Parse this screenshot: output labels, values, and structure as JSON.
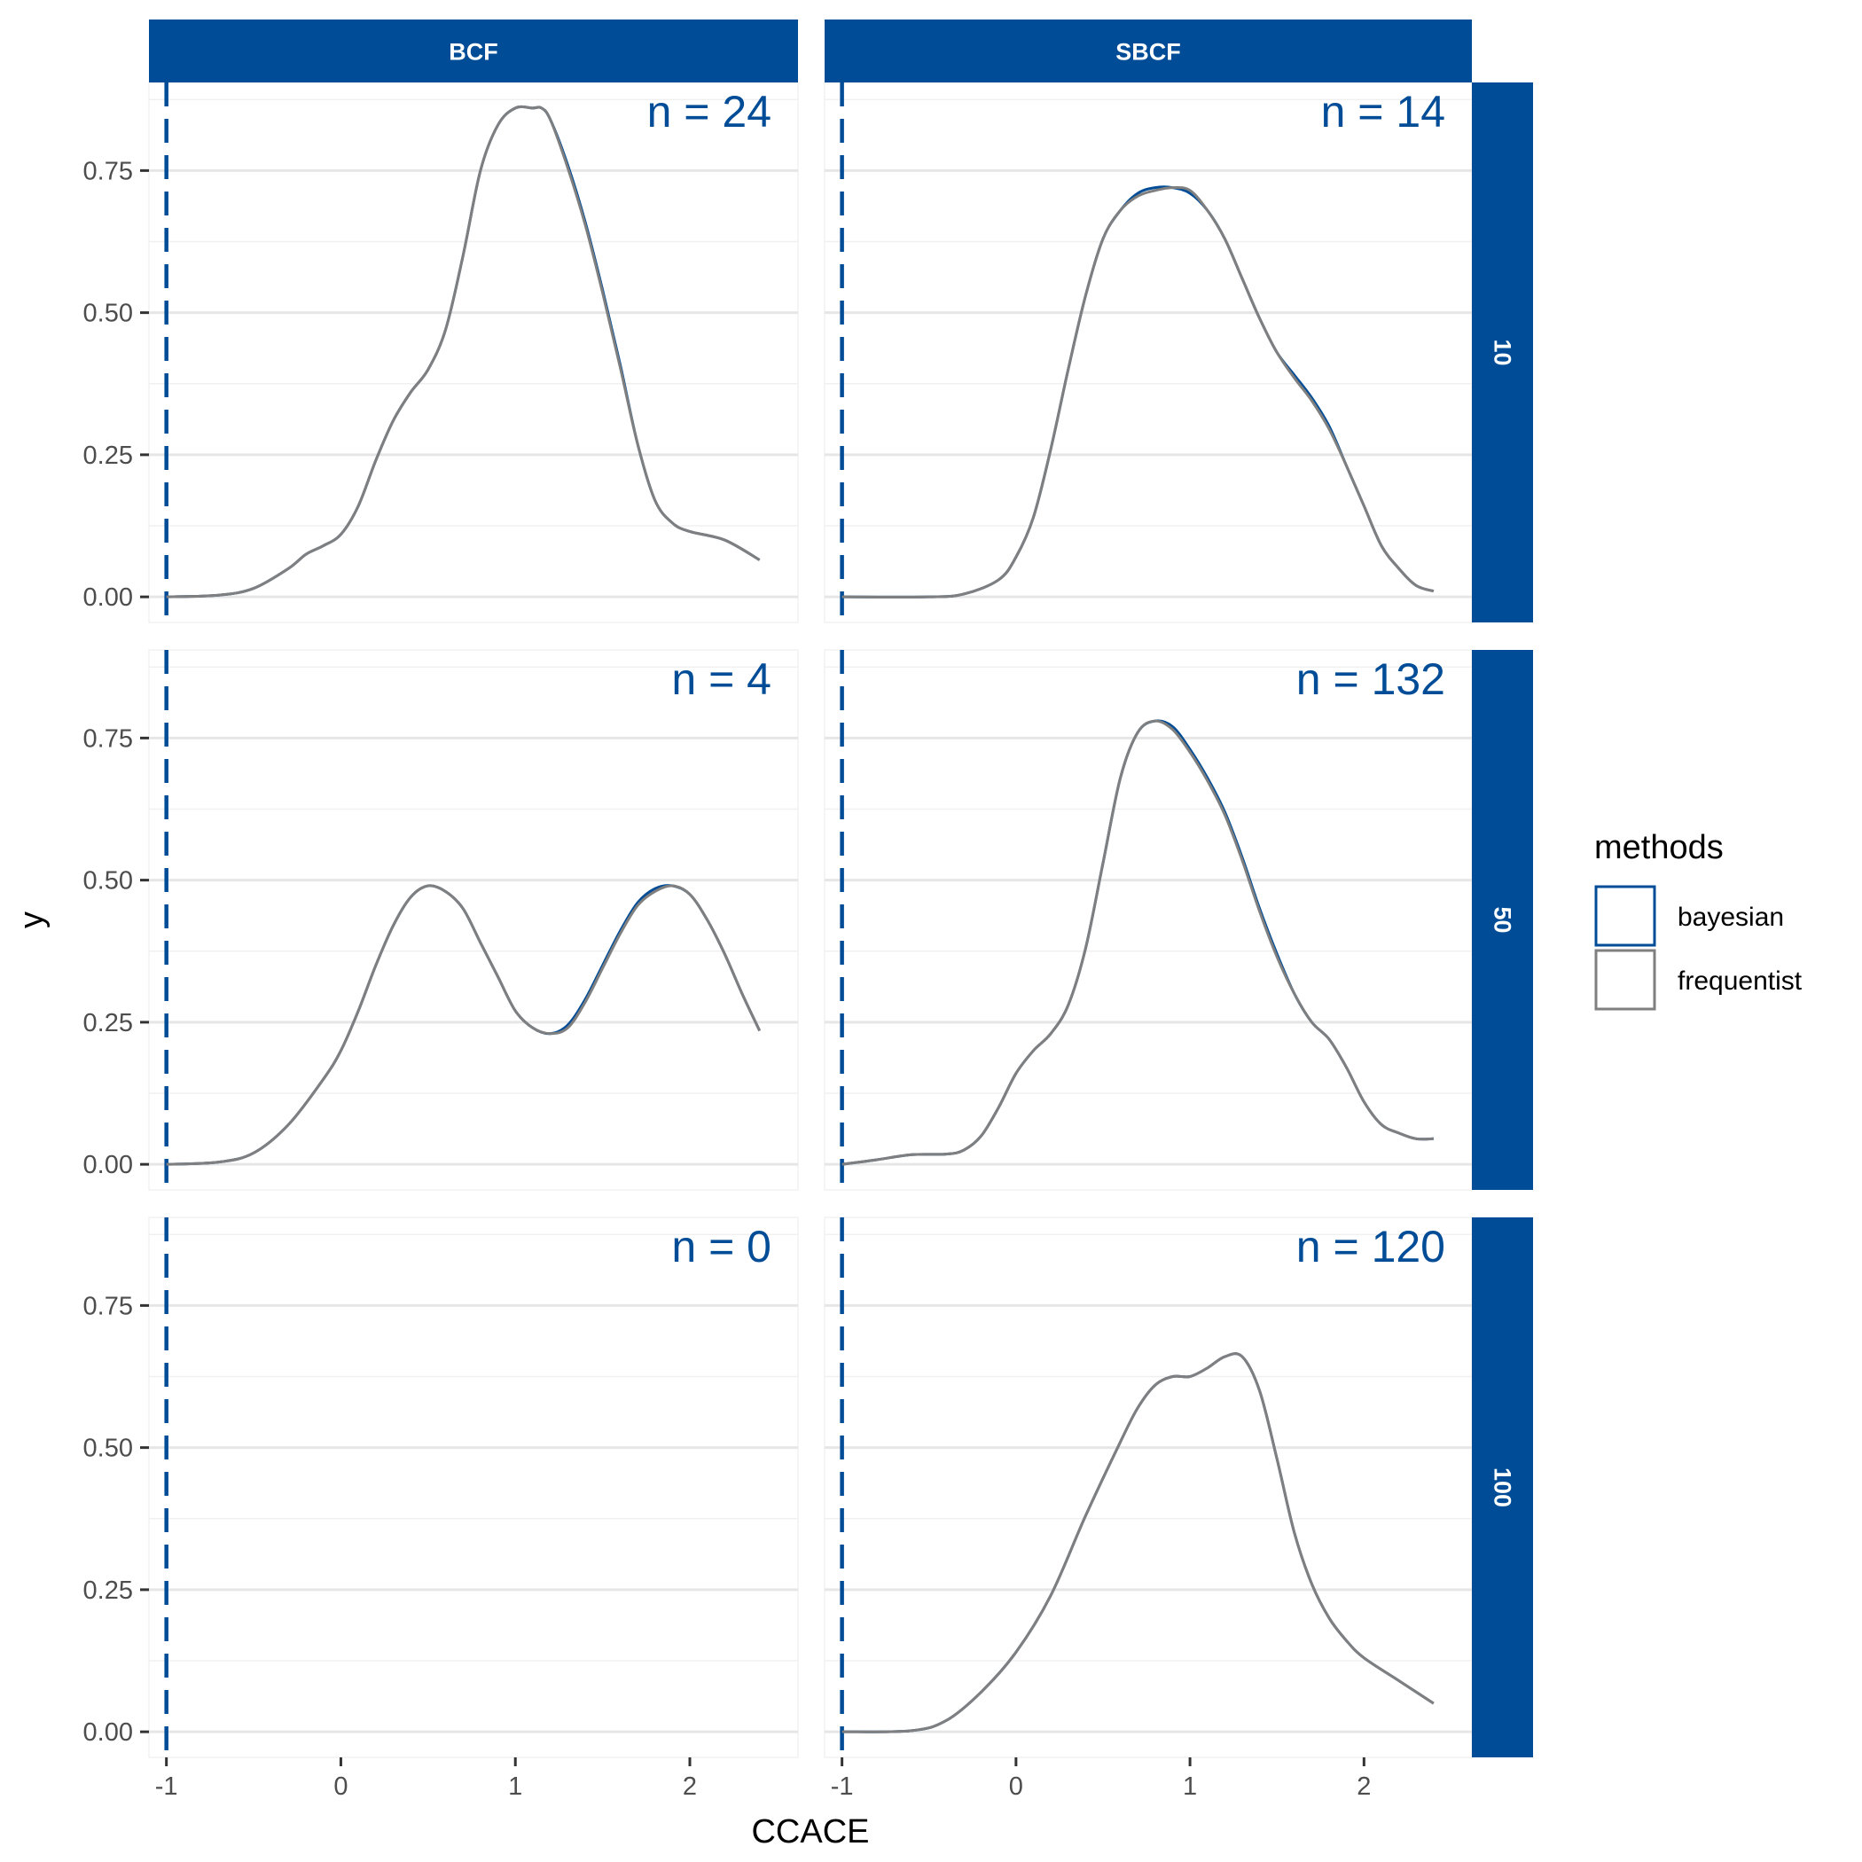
{
  "chart_data": {
    "type": "line",
    "subtype": "faceted-density",
    "xlabel": "CCACE",
    "ylabel": "y",
    "xlim": [
      -1.1,
      2.62
    ],
    "ylim": [
      -0.045,
      0.905
    ],
    "x_ticks": [
      -1,
      0,
      1,
      2
    ],
    "x_tick_labels": [
      "-1",
      "0",
      "1",
      "2"
    ],
    "y_ticks": [
      0,
      0.25,
      0.5,
      0.75
    ],
    "y_tick_labels": [
      "0.00",
      "0.25",
      "0.50",
      "0.75"
    ],
    "reference_line": {
      "x": -1,
      "style": "dashed",
      "color": "#004C97"
    },
    "col_facets": [
      "BCF",
      "SBCF"
    ],
    "row_facets": [
      "10",
      "50",
      "100"
    ],
    "strip_color": "#004C97",
    "legend": {
      "title": "methods",
      "items": [
        {
          "name": "bayesian",
          "color": "#004C97"
        },
        {
          "name": "frequentist",
          "color": "#7f7f7f"
        }
      ]
    },
    "panels": [
      {
        "row": "10",
        "col": "BCF",
        "n_label": "n = 24",
        "series": [
          {
            "name": "bayesian",
            "x": [
              -1,
              -0.7,
              -0.5,
              -0.3,
              -0.2,
              -0.1,
              0,
              0.1,
              0.2,
              0.3,
              0.4,
              0.5,
              0.6,
              0.7,
              0.8,
              0.9,
              1.0,
              1.1,
              1.15,
              1.2,
              1.3,
              1.4,
              1.5,
              1.6,
              1.7,
              1.8,
              1.9,
              2.0,
              2.2,
              2.4
            ],
            "y": [
              0.0,
              0.003,
              0.015,
              0.05,
              0.075,
              0.09,
              0.11,
              0.16,
              0.24,
              0.31,
              0.36,
              0.4,
              0.47,
              0.6,
              0.75,
              0.83,
              0.86,
              0.86,
              0.86,
              0.84,
              0.76,
              0.66,
              0.54,
              0.41,
              0.27,
              0.17,
              0.13,
              0.115,
              0.1,
              0.065
            ]
          },
          {
            "name": "frequentist",
            "x": [
              -1,
              -0.7,
              -0.5,
              -0.3,
              -0.2,
              -0.1,
              0,
              0.1,
              0.2,
              0.3,
              0.4,
              0.5,
              0.6,
              0.7,
              0.8,
              0.9,
              1.0,
              1.1,
              1.15,
              1.2,
              1.3,
              1.4,
              1.5,
              1.6,
              1.7,
              1.8,
              1.9,
              2.0,
              2.2,
              2.4
            ],
            "y": [
              0.0,
              0.003,
              0.015,
              0.05,
              0.075,
              0.09,
              0.11,
              0.16,
              0.24,
              0.31,
              0.36,
              0.4,
              0.47,
              0.6,
              0.75,
              0.83,
              0.86,
              0.86,
              0.86,
              0.84,
              0.755,
              0.655,
              0.535,
              0.405,
              0.27,
              0.17,
              0.13,
              0.115,
              0.1,
              0.065
            ]
          }
        ]
      },
      {
        "row": "10",
        "col": "SBCF",
        "n_label": "n = 14",
        "series": [
          {
            "name": "bayesian",
            "x": [
              -1,
              -0.5,
              -0.3,
              -0.1,
              0,
              0.1,
              0.2,
              0.3,
              0.4,
              0.5,
              0.6,
              0.7,
              0.8,
              0.9,
              1.0,
              1.1,
              1.2,
              1.3,
              1.4,
              1.5,
              1.6,
              1.7,
              1.8,
              1.9,
              2.0,
              2.1,
              2.2,
              2.3,
              2.4
            ],
            "y": [
              0.0,
              0.0,
              0.005,
              0.03,
              0.07,
              0.14,
              0.26,
              0.4,
              0.53,
              0.63,
              0.68,
              0.71,
              0.72,
              0.72,
              0.71,
              0.68,
              0.63,
              0.56,
              0.49,
              0.43,
              0.39,
              0.35,
              0.3,
              0.23,
              0.16,
              0.09,
              0.05,
              0.02,
              0.01
            ]
          },
          {
            "name": "frequentist",
            "x": [
              -1,
              -0.5,
              -0.3,
              -0.1,
              0,
              0.1,
              0.2,
              0.3,
              0.4,
              0.5,
              0.6,
              0.7,
              0.8,
              0.9,
              1.0,
              1.1,
              1.2,
              1.3,
              1.4,
              1.5,
              1.6,
              1.7,
              1.8,
              1.9,
              2.0,
              2.1,
              2.2,
              2.3,
              2.4
            ],
            "y": [
              0.0,
              0.0,
              0.005,
              0.03,
              0.07,
              0.14,
              0.26,
              0.4,
              0.53,
              0.63,
              0.68,
              0.705,
              0.715,
              0.72,
              0.715,
              0.68,
              0.63,
              0.56,
              0.49,
              0.43,
              0.385,
              0.345,
              0.295,
              0.23,
              0.16,
              0.09,
              0.05,
              0.02,
              0.01
            ]
          }
        ]
      },
      {
        "row": "50",
        "col": "BCF",
        "n_label": "n = 4",
        "series": [
          {
            "name": "bayesian",
            "x": [
              -1,
              -0.7,
              -0.5,
              -0.3,
              -0.1,
              0,
              0.1,
              0.2,
              0.3,
              0.4,
              0.5,
              0.6,
              0.7,
              0.8,
              0.9,
              1.0,
              1.1,
              1.2,
              1.3,
              1.4,
              1.5,
              1.6,
              1.7,
              1.8,
              1.9,
              2.0,
              2.1,
              2.2,
              2.3,
              2.4
            ],
            "y": [
              0.0,
              0.004,
              0.02,
              0.07,
              0.15,
              0.2,
              0.27,
              0.35,
              0.42,
              0.47,
              0.49,
              0.48,
              0.45,
              0.39,
              0.33,
              0.27,
              0.24,
              0.23,
              0.245,
              0.29,
              0.35,
              0.41,
              0.46,
              0.485,
              0.49,
              0.475,
              0.43,
              0.37,
              0.3,
              0.235
            ]
          },
          {
            "name": "frequentist",
            "x": [
              -1,
              -0.7,
              -0.5,
              -0.3,
              -0.1,
              0,
              0.1,
              0.2,
              0.3,
              0.4,
              0.5,
              0.6,
              0.7,
              0.8,
              0.9,
              1.0,
              1.1,
              1.2,
              1.3,
              1.4,
              1.5,
              1.6,
              1.7,
              1.8,
              1.9,
              2.0,
              2.1,
              2.2,
              2.3,
              2.4
            ],
            "y": [
              0.0,
              0.004,
              0.02,
              0.07,
              0.15,
              0.2,
              0.27,
              0.35,
              0.42,
              0.47,
              0.49,
              0.48,
              0.45,
              0.39,
              0.33,
              0.27,
              0.24,
              0.23,
              0.24,
              0.285,
              0.345,
              0.405,
              0.455,
              0.48,
              0.49,
              0.475,
              0.43,
              0.37,
              0.3,
              0.235
            ]
          }
        ]
      },
      {
        "row": "50",
        "col": "SBCF",
        "n_label": "n = 132",
        "series": [
          {
            "name": "bayesian",
            "x": [
              -1,
              -0.8,
              -0.6,
              -0.4,
              -0.3,
              -0.2,
              -0.1,
              0,
              0.1,
              0.2,
              0.3,
              0.4,
              0.5,
              0.6,
              0.7,
              0.8,
              0.9,
              1.0,
              1.1,
              1.2,
              1.3,
              1.4,
              1.5,
              1.6,
              1.7,
              1.8,
              1.9,
              2.0,
              2.1,
              2.2,
              2.3,
              2.4
            ],
            "y": [
              0.0,
              0.008,
              0.017,
              0.018,
              0.025,
              0.05,
              0.1,
              0.16,
              0.2,
              0.23,
              0.28,
              0.38,
              0.53,
              0.68,
              0.76,
              0.78,
              0.77,
              0.73,
              0.68,
              0.62,
              0.54,
              0.45,
              0.37,
              0.3,
              0.25,
              0.22,
              0.17,
              0.11,
              0.07,
              0.055,
              0.045,
              0.045
            ]
          },
          {
            "name": "frequentist",
            "x": [
              -1,
              -0.8,
              -0.6,
              -0.4,
              -0.3,
              -0.2,
              -0.1,
              0,
              0.1,
              0.2,
              0.3,
              0.4,
              0.5,
              0.6,
              0.7,
              0.8,
              0.9,
              1.0,
              1.1,
              1.2,
              1.3,
              1.4,
              1.5,
              1.6,
              1.7,
              1.8,
              1.9,
              2.0,
              2.1,
              2.2,
              2.3,
              2.4
            ],
            "y": [
              0.0,
              0.008,
              0.017,
              0.018,
              0.025,
              0.05,
              0.1,
              0.16,
              0.2,
              0.23,
              0.28,
              0.38,
              0.53,
              0.68,
              0.76,
              0.78,
              0.765,
              0.725,
              0.675,
              0.615,
              0.535,
              0.445,
              0.365,
              0.3,
              0.25,
              0.22,
              0.17,
              0.11,
              0.07,
              0.055,
              0.045,
              0.045
            ]
          }
        ]
      },
      {
        "row": "100",
        "col": "BCF",
        "n_label": "n = 0",
        "series": []
      },
      {
        "row": "100",
        "col": "SBCF",
        "n_label": "n = 120",
        "series": [
          {
            "name": "bayesian",
            "x": [
              -1,
              -0.6,
              -0.4,
              -0.2,
              0,
              0.2,
              0.4,
              0.6,
              0.7,
              0.8,
              0.9,
              1.0,
              1.1,
              1.2,
              1.3,
              1.4,
              1.5,
              1.6,
              1.7,
              1.8,
              1.9,
              2.0,
              2.2,
              2.4
            ],
            "y": [
              0.0,
              0.002,
              0.02,
              0.07,
              0.14,
              0.24,
              0.38,
              0.51,
              0.57,
              0.61,
              0.625,
              0.625,
              0.64,
              0.66,
              0.66,
              0.6,
              0.48,
              0.35,
              0.26,
              0.2,
              0.16,
              0.13,
              0.09,
              0.05
            ]
          },
          {
            "name": "frequentist",
            "x": [
              -1,
              -0.6,
              -0.4,
              -0.2,
              0,
              0.2,
              0.4,
              0.6,
              0.7,
              0.8,
              0.9,
              1.0,
              1.1,
              1.2,
              1.3,
              1.4,
              1.5,
              1.6,
              1.7,
              1.8,
              1.9,
              2.0,
              2.2,
              2.4
            ],
            "y": [
              0.0,
              0.002,
              0.02,
              0.07,
              0.14,
              0.24,
              0.38,
              0.51,
              0.57,
              0.61,
              0.625,
              0.625,
              0.64,
              0.66,
              0.66,
              0.6,
              0.48,
              0.35,
              0.26,
              0.2,
              0.16,
              0.13,
              0.09,
              0.05
            ]
          }
        ]
      }
    ]
  }
}
